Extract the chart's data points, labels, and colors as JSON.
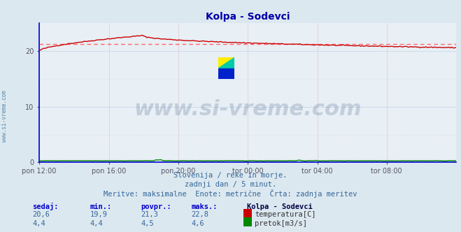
{
  "title": "Kolpa - Sodevci",
  "bg_color": "#dce8f0",
  "plot_bg_color": "#e8eff5",
  "grid_color_v": "#d0a0a0",
  "grid_color_h": "#c8d8e8",
  "spine_color": "#0000cc",
  "title_color": "#0000aa",
  "x_tick_labels": [
    "pon 12:00",
    "pon 16:00",
    "pon 20:00",
    "tor 00:00",
    "tor 04:00",
    "tor 08:00"
  ],
  "x_tick_positions": [
    0.0,
    0.167,
    0.333,
    0.5,
    0.667,
    0.833
  ],
  "y_ticks": [
    0,
    10,
    20
  ],
  "ylim": [
    0,
    25
  ],
  "xlim": [
    0,
    1
  ],
  "temp_avg": 21.3,
  "temp_color": "#cc0000",
  "flow_color": "#008800",
  "avg_line_color": "#ff6666",
  "tick_color": "#555566",
  "watermark_text": "www.si-vreme.com",
  "watermark_color": "#1a3a6a",
  "subtitle1": "Slovenija / reke in morje.",
  "subtitle2": "zadnji dan / 5 minut.",
  "subtitle3": "Meritve: maksimalne  Enote: metrične  Črta: zadnja meritev",
  "legend_title": "Kolpa - Sodevci",
  "legend_items": [
    "temperatura[C]",
    "pretok[m3/s]"
  ],
  "legend_colors": [
    "#cc0000",
    "#008800"
  ],
  "headers": [
    "sedaj:",
    "min.:",
    "povpr.:",
    "maks.:"
  ],
  "vals_temp": [
    "20,6",
    "19,9",
    "21,3",
    "22,8"
  ],
  "vals_flow": [
    "4,4",
    "4,4",
    "4,5",
    "4,6"
  ],
  "header_color": "#0000cc",
  "value_color": "#336699",
  "legend_title_color": "#000044",
  "left_text": "www.si-vreme.com",
  "left_text_color": "#5588aa",
  "subtitle_color": "#336699"
}
